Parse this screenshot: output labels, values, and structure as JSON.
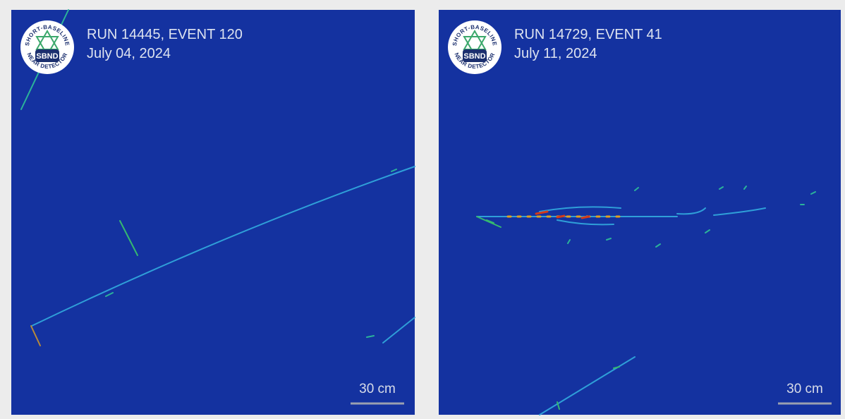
{
  "panels": [
    {
      "logo": {
        "top": "SHORT-BASELINE",
        "center": "SBND",
        "bottom": "NEAR DETECTOR"
      },
      "title": "RUN 14445, EVENT 120",
      "date": "July 04, 2024",
      "scale": "30 cm"
    },
    {
      "logo": {
        "top": "SHORT-BASELINE",
        "center": "SBND",
        "bottom": "NEAR DETECTOR"
      },
      "title": "RUN 14729, EVENT 41",
      "date": "July 11, 2024",
      "scale": "30 cm"
    }
  ]
}
